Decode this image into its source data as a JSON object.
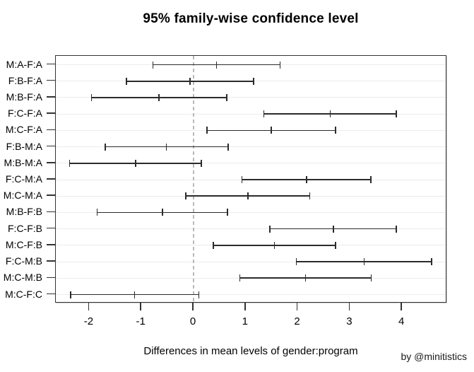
{
  "annotations": {
    "watermark": "by @minitistics"
  },
  "chart_data": {
    "type": "scatter",
    "subtype": "tukey-hsd-horizontal-confidence-intervals",
    "title": "95% family-wise confidence level",
    "xlabel": "Differences in mean levels of gender:program",
    "ylabel": "",
    "xlim": [
      -2.64,
      4.87
    ],
    "x_ticks": [
      -2,
      -1,
      0,
      1,
      2,
      3,
      4
    ],
    "x_tick_labels": [
      "-2",
      "-1",
      "0",
      "1",
      "2",
      "3",
      "4"
    ],
    "reference_line_x": 0,
    "grid": "light horizontal gridline per comparison row",
    "legend": "none",
    "comparisons": [
      {
        "label": "M:A-F:A",
        "lower": -0.78,
        "estimate": 0.44,
        "upper": 1.66
      },
      {
        "label": "F:B-F:A",
        "lower": -1.29,
        "estimate": -0.07,
        "upper": 1.15
      },
      {
        "label": "M:B-F:A",
        "lower": -1.96,
        "estimate": -0.66,
        "upper": 0.64
      },
      {
        "label": "F:C-F:A",
        "lower": 1.35,
        "estimate": 2.62,
        "upper": 3.89
      },
      {
        "label": "M:C-F:A",
        "lower": 0.26,
        "estimate": 1.49,
        "upper": 2.72
      },
      {
        "label": "F:B-M:A",
        "lower": -1.69,
        "estimate": -0.52,
        "upper": 0.66
      },
      {
        "label": "M:B-M:A",
        "lower": -2.38,
        "estimate": -1.11,
        "upper": 0.15
      },
      {
        "label": "F:C-M:A",
        "lower": 0.93,
        "estimate": 2.17,
        "upper": 3.4
      },
      {
        "label": "M:C-M:A",
        "lower": -0.15,
        "estimate": 1.04,
        "upper": 2.23
      },
      {
        "label": "M:B-F:B",
        "lower": -1.85,
        "estimate": -0.6,
        "upper": 0.65
      },
      {
        "label": "F:C-F:B",
        "lower": 1.46,
        "estimate": 2.68,
        "upper": 3.89
      },
      {
        "label": "M:C-F:B",
        "lower": 0.38,
        "estimate": 1.55,
        "upper": 2.72
      },
      {
        "label": "F:C-M:B",
        "lower": 1.97,
        "estimate": 3.27,
        "upper": 4.57
      },
      {
        "label": "M:C-M:B",
        "lower": 0.89,
        "estimate": 2.15,
        "upper": 3.41
      },
      {
        "label": "M:C-F:C",
        "lower": -2.36,
        "estimate": -1.13,
        "upper": 0.1
      }
    ],
    "colors": {
      "interval": "#2b2b2b",
      "gridline": "#ececec",
      "zero_reference_line": "#b9b9b9",
      "box_border": "#333333",
      "text": "#000000",
      "background": "#ffffff"
    }
  }
}
